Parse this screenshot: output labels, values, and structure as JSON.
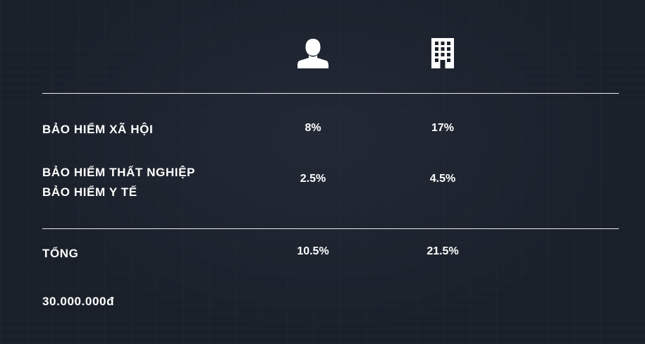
{
  "header": {
    "employee_icon": "person-icon",
    "company_icon": "building-icon"
  },
  "rows": [
    {
      "label": "BẢO HIỂM XÃ HỘI",
      "employee": "8%",
      "company": "17%"
    },
    {
      "label_line1": "BẢO HIỂM THẤT NGHIỆP",
      "label_line2": "BẢO HIỂM Y TẾ",
      "employee": "2.5%",
      "company": "4.5%"
    }
  ],
  "total": {
    "label": "TỔNG",
    "employee": "10.5%",
    "company": "21.5%"
  },
  "salary": "30.000.000đ",
  "colors": {
    "background": "#1a202a",
    "text": "#ffffff",
    "rule": "#e8eaee"
  }
}
